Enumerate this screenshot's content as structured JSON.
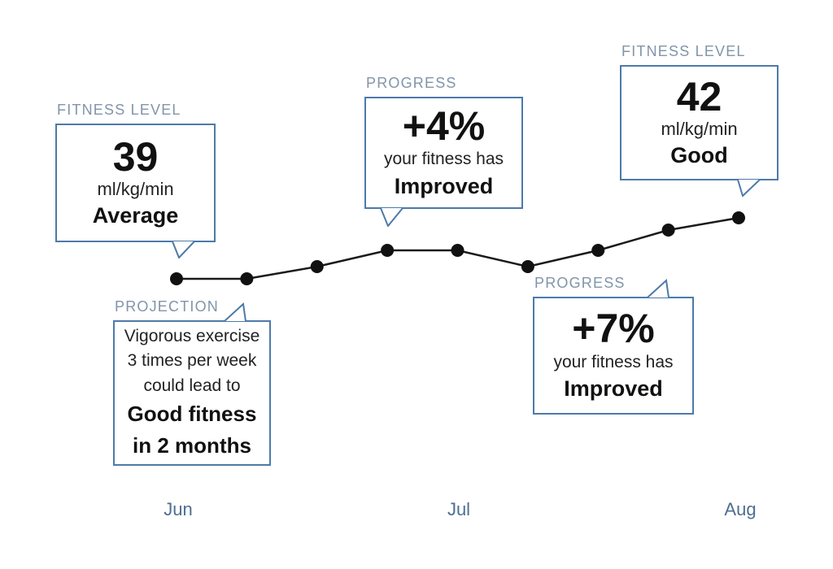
{
  "colors": {
    "box_border": "#4d7aa9",
    "label_text": "#8195a9",
    "month_text": "#4e6e91",
    "line": "#1a1a1a",
    "dot": "#111111"
  },
  "chart_data": {
    "type": "line",
    "x_tick_labels": [
      "Jun",
      "Jul",
      "Aug"
    ],
    "x_tick_point_indices": [
      0,
      4,
      8
    ],
    "series": [
      {
        "name": "Fitness level",
        "values": [
          39,
          39,
          39.6,
          40.4,
          40.4,
          39.6,
          40.4,
          41.4,
          42
        ]
      }
    ],
    "value_unit": "ml/kg/min",
    "grid": false,
    "legend": false,
    "marker": "dot"
  },
  "callouts": {
    "fitness_start": {
      "label": "FITNESS LEVEL",
      "value": "39",
      "unit": "ml/kg/min",
      "rating": "Average"
    },
    "progress_mid": {
      "label": "PROGRESS",
      "value": "+4%",
      "line1": "your fitness has",
      "line2": "Improved"
    },
    "fitness_end": {
      "label": "FITNESS LEVEL",
      "value": "42",
      "unit": "ml/kg/min",
      "rating": "Good"
    },
    "projection": {
      "label": "PROJECTION",
      "line1": "Vigorous exercise",
      "line2": "3 times per week",
      "line3": "could lead to",
      "bold1": "Good fitness",
      "bold2": "in 2 months"
    },
    "progress_end": {
      "label": "PROGRESS",
      "value": "+7%",
      "line1": "your fitness has",
      "line2": "Improved"
    }
  }
}
